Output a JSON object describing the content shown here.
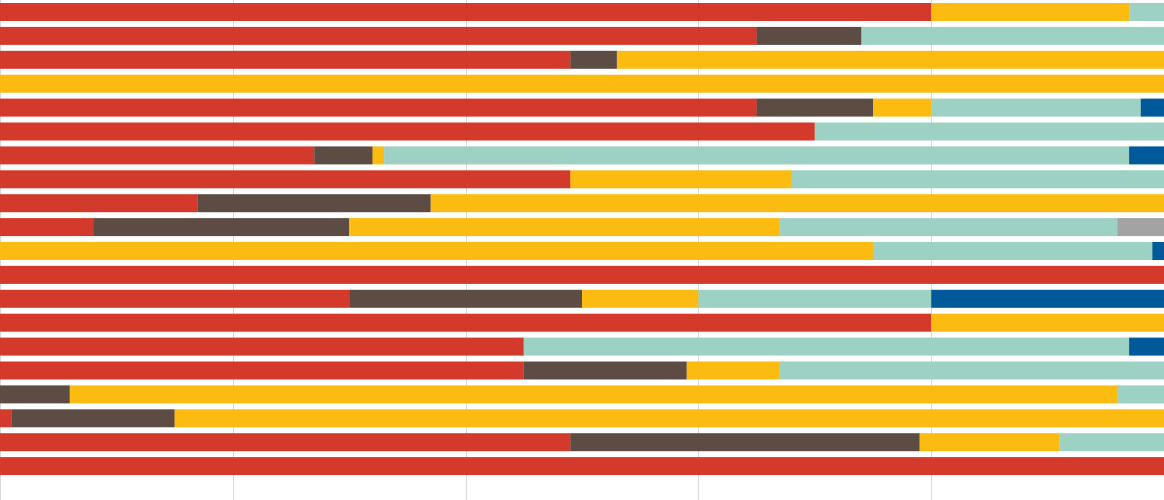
{
  "chart_data": {
    "type": "bar",
    "orientation": "horizontal",
    "stacked": true,
    "normalized": true,
    "title": "",
    "xlabel": "",
    "ylabel": "",
    "xlim": [
      0,
      100
    ],
    "grid": true,
    "legend": "none",
    "colors": [
      "#d43a2b",
      "#5d4c44",
      "#fbbb10",
      "#9dd1c4",
      "#005a9a",
      "#a3a3a3"
    ],
    "series": [
      {
        "name": "",
        "values": [
          80,
          65,
          49,
          0,
          65,
          70,
          27,
          49,
          17,
          8,
          0,
          100,
          30,
          80,
          45,
          45,
          0,
          1,
          49,
          100
        ]
      },
      {
        "name": "",
        "values": [
          0,
          9,
          4,
          0,
          10,
          0,
          5,
          0,
          20,
          22,
          0,
          0,
          20,
          0,
          0,
          14,
          6,
          14,
          30,
          0
        ]
      },
      {
        "name": "",
        "values": [
          17,
          0,
          47,
          100,
          5,
          0,
          1,
          19,
          63,
          37,
          75,
          0,
          10,
          20,
          0,
          8,
          90,
          86,
          12,
          0
        ]
      },
      {
        "name": "",
        "values": [
          3,
          26,
          0,
          0,
          18,
          30,
          64,
          32,
          0,
          29,
          24,
          0,
          20,
          0,
          52,
          33,
          4,
          0,
          9,
          0
        ]
      },
      {
        "name": "",
        "values": [
          0,
          0,
          0,
          0,
          2,
          0,
          3,
          0,
          0,
          0,
          1,
          0,
          20,
          0,
          3,
          0,
          0,
          0,
          0,
          0
        ]
      },
      {
        "name": "",
        "values": [
          0,
          0,
          0,
          0,
          0,
          0,
          0,
          0,
          0,
          4,
          0,
          0,
          0,
          0,
          0,
          0,
          0,
          0,
          0,
          0
        ]
      }
    ]
  }
}
